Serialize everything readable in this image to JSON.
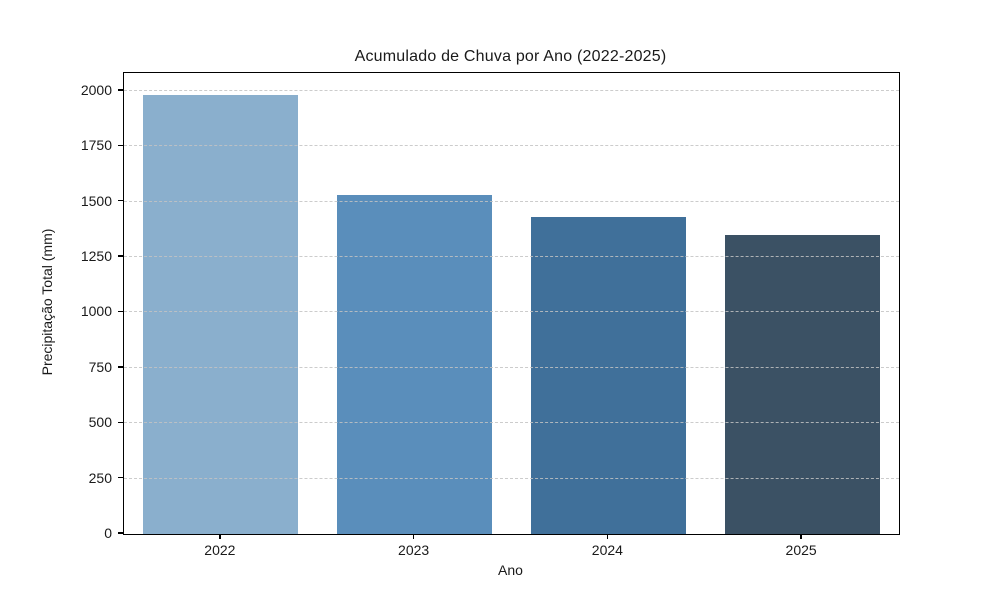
{
  "chart_data": {
    "type": "bar",
    "title": "Acumulado de Chuva por Ano (2022-2025)",
    "xlabel": "Ano",
    "ylabel": "Precipitação Total (mm)",
    "categories": [
      "2022",
      "2023",
      "2024",
      "2025"
    ],
    "values": [
      1980,
      1530,
      1430,
      1350
    ],
    "bar_colors": [
      "#8AAFCD",
      "#5A8EBB",
      "#40709A",
      "#3B5164"
    ],
    "yticks": [
      0,
      250,
      500,
      750,
      1000,
      1250,
      1500,
      1750,
      2000
    ],
    "ylim": [
      0,
      2081
    ],
    "grid": "horizontal-dashed-over-bars",
    "gridline_color": "#C3C3C3",
    "legend": "none",
    "background_color": "#FFFFFF"
  }
}
